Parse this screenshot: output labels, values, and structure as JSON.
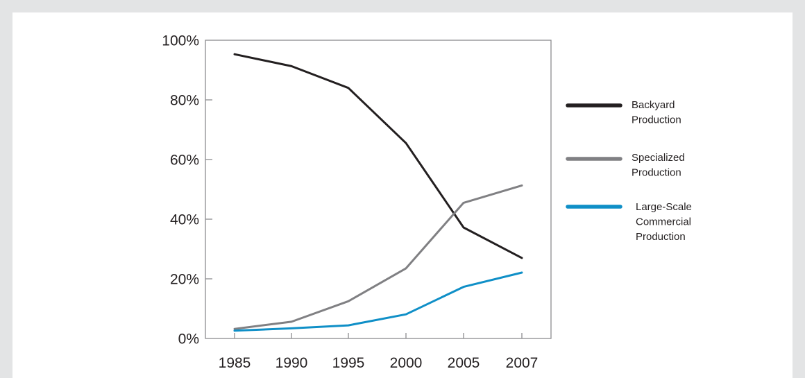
{
  "chart_data": {
    "type": "line",
    "title": "",
    "xlabel": "",
    "ylabel": "",
    "categories": [
      "1985",
      "1990",
      "1995",
      "2000",
      "2005",
      "2007"
    ],
    "ylim": [
      0,
      100
    ],
    "y_ticks": [
      "0%",
      "20%",
      "40%",
      "60%",
      "80%",
      "100%"
    ],
    "y_tick_values": [
      0,
      20,
      40,
      60,
      80,
      100
    ],
    "grid": false,
    "legend_position": "right",
    "series": [
      {
        "name_lines": [
          "Backyard",
          "Production"
        ],
        "color": "#231f20",
        "points": [
          [
            1985,
            95.3
          ],
          [
            1990,
            91.3
          ],
          [
            1995,
            84.0
          ],
          [
            2000,
            65.5
          ],
          [
            2005,
            37.2
          ],
          [
            2007,
            27.0
          ]
        ]
      },
      {
        "name_lines": [
          "Specialized",
          "Production"
        ],
        "color": "#808083",
        "points": [
          [
            1985,
            3.2
          ],
          [
            1990,
            5.6
          ],
          [
            1995,
            12.5
          ],
          [
            2000,
            23.5
          ],
          [
            2005,
            45.5
          ],
          [
            2007,
            51.3
          ]
        ]
      },
      {
        "name_lines": [
          "Large-Scale",
          "Commercial",
          "Production"
        ],
        "color": "#0f8fc7",
        "points": [
          [
            1985,
            2.6
          ],
          [
            1990,
            3.4
          ],
          [
            1995,
            4.4
          ],
          [
            2000,
            8.1
          ],
          [
            2005,
            17.3
          ],
          [
            2007,
            22.1
          ]
        ]
      }
    ]
  }
}
